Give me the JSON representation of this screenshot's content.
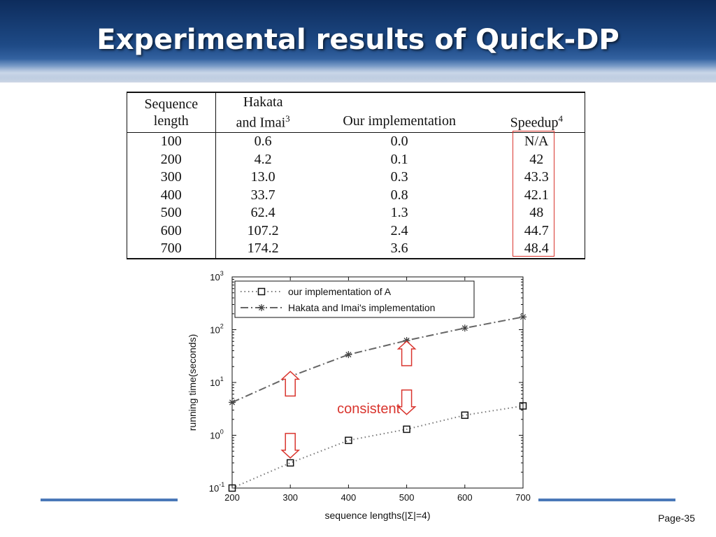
{
  "slide": {
    "title": "Experimental results of Quick-DP",
    "page": "Page-35"
  },
  "table": {
    "headers": [
      {
        "line1": "Sequence",
        "line2": "length",
        "sup": ""
      },
      {
        "line1": "Hakata",
        "line2": "and Imai",
        "sup": "3"
      },
      {
        "line1": "",
        "line2": "Our implementation",
        "sup": ""
      },
      {
        "line1": "",
        "line2": "Speedup",
        "sup": "4"
      }
    ],
    "rows": [
      [
        "100",
        "0.6",
        "0.0",
        "N/A"
      ],
      [
        "200",
        "4.2",
        "0.1",
        "42"
      ],
      [
        "300",
        "13.0",
        "0.3",
        "43.3"
      ],
      [
        "400",
        "33.7",
        "0.8",
        "42.1"
      ],
      [
        "500",
        "62.4",
        "1.3",
        "48"
      ],
      [
        "600",
        "107.2",
        "2.4",
        "44.7"
      ],
      [
        "700",
        "174.2",
        "3.6",
        "48.4"
      ]
    ],
    "highlight_color": "#d9352e"
  },
  "chart_data": {
    "type": "line",
    "xlabel": "sequence lengths(|Σ|=4)",
    "ylabel": "running time(seconds)",
    "xlim": [
      200,
      700
    ],
    "ylim": [
      0.1,
      1000
    ],
    "yscale": "log",
    "x_ticks": [
      "200",
      "300",
      "400",
      "500",
      "600",
      "700"
    ],
    "y_ticks": [
      {
        "base": "10",
        "exp": "-1",
        "value": 0.1
      },
      {
        "base": "10",
        "exp": "0",
        "value": 1
      },
      {
        "base": "10",
        "exp": "1",
        "value": 10
      },
      {
        "base": "10",
        "exp": "2",
        "value": 100
      },
      {
        "base": "10",
        "exp": "3",
        "value": 1000
      }
    ],
    "x": [
      200,
      300,
      400,
      500,
      600,
      700
    ],
    "series": [
      {
        "name": "our implementation of A",
        "marker": "square",
        "style": "dotted",
        "values": [
          0.1,
          0.3,
          0.8,
          1.3,
          2.4,
          3.6
        ]
      },
      {
        "name": "Hakata and Imai's implementation",
        "marker": "asterisk",
        "style": "dashdot",
        "values": [
          4.2,
          13.0,
          33.7,
          62.4,
          107.2,
          174.2
        ]
      }
    ],
    "legend_position": "top-left",
    "annotation": {
      "text": "consistent",
      "color": "#d9352e"
    },
    "arrows": [
      {
        "x": 300,
        "y": 8.0,
        "direction": "up"
      },
      {
        "x": 300,
        "y": 0.75,
        "direction": "down"
      },
      {
        "x": 500,
        "y": 30,
        "direction": "up"
      },
      {
        "x": 500,
        "y": 5.0,
        "direction": "down"
      }
    ],
    "grid": false
  }
}
